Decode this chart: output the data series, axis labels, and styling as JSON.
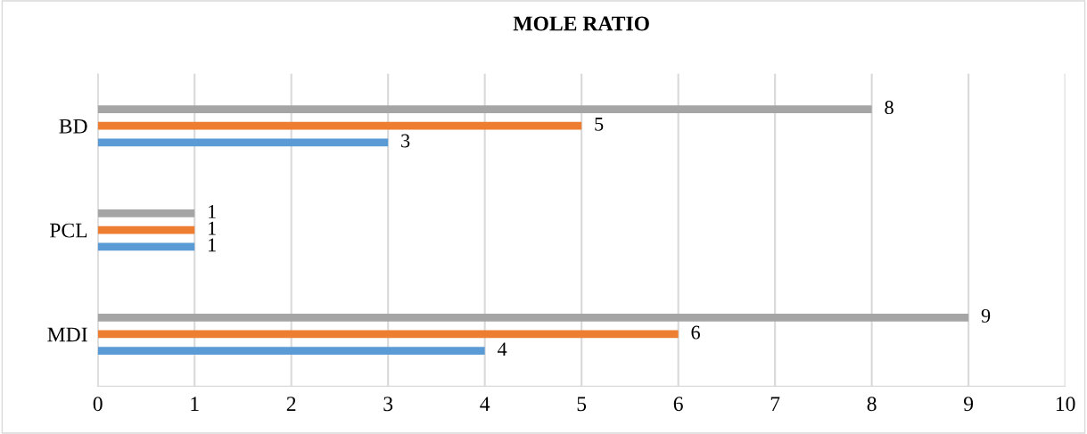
{
  "chart_data": {
    "type": "bar",
    "orientation": "horizontal",
    "title": "MOLE RATIO",
    "categories": [
      "BD",
      "PCL",
      "MDI"
    ],
    "series": [
      {
        "color": "#5b9bd5",
        "values": [
          3,
          1,
          4
        ]
      },
      {
        "color": "#ed7d31",
        "values": [
          5,
          1,
          6
        ]
      },
      {
        "color": "#a5a5a5",
        "values": [
          8,
          1,
          9
        ]
      }
    ],
    "xlim": [
      0,
      10
    ],
    "xticks": [
      0,
      1,
      2,
      3,
      4,
      5,
      6,
      7,
      8,
      9,
      10
    ],
    "grid": "x",
    "data_labels": true,
    "legend": false
  }
}
